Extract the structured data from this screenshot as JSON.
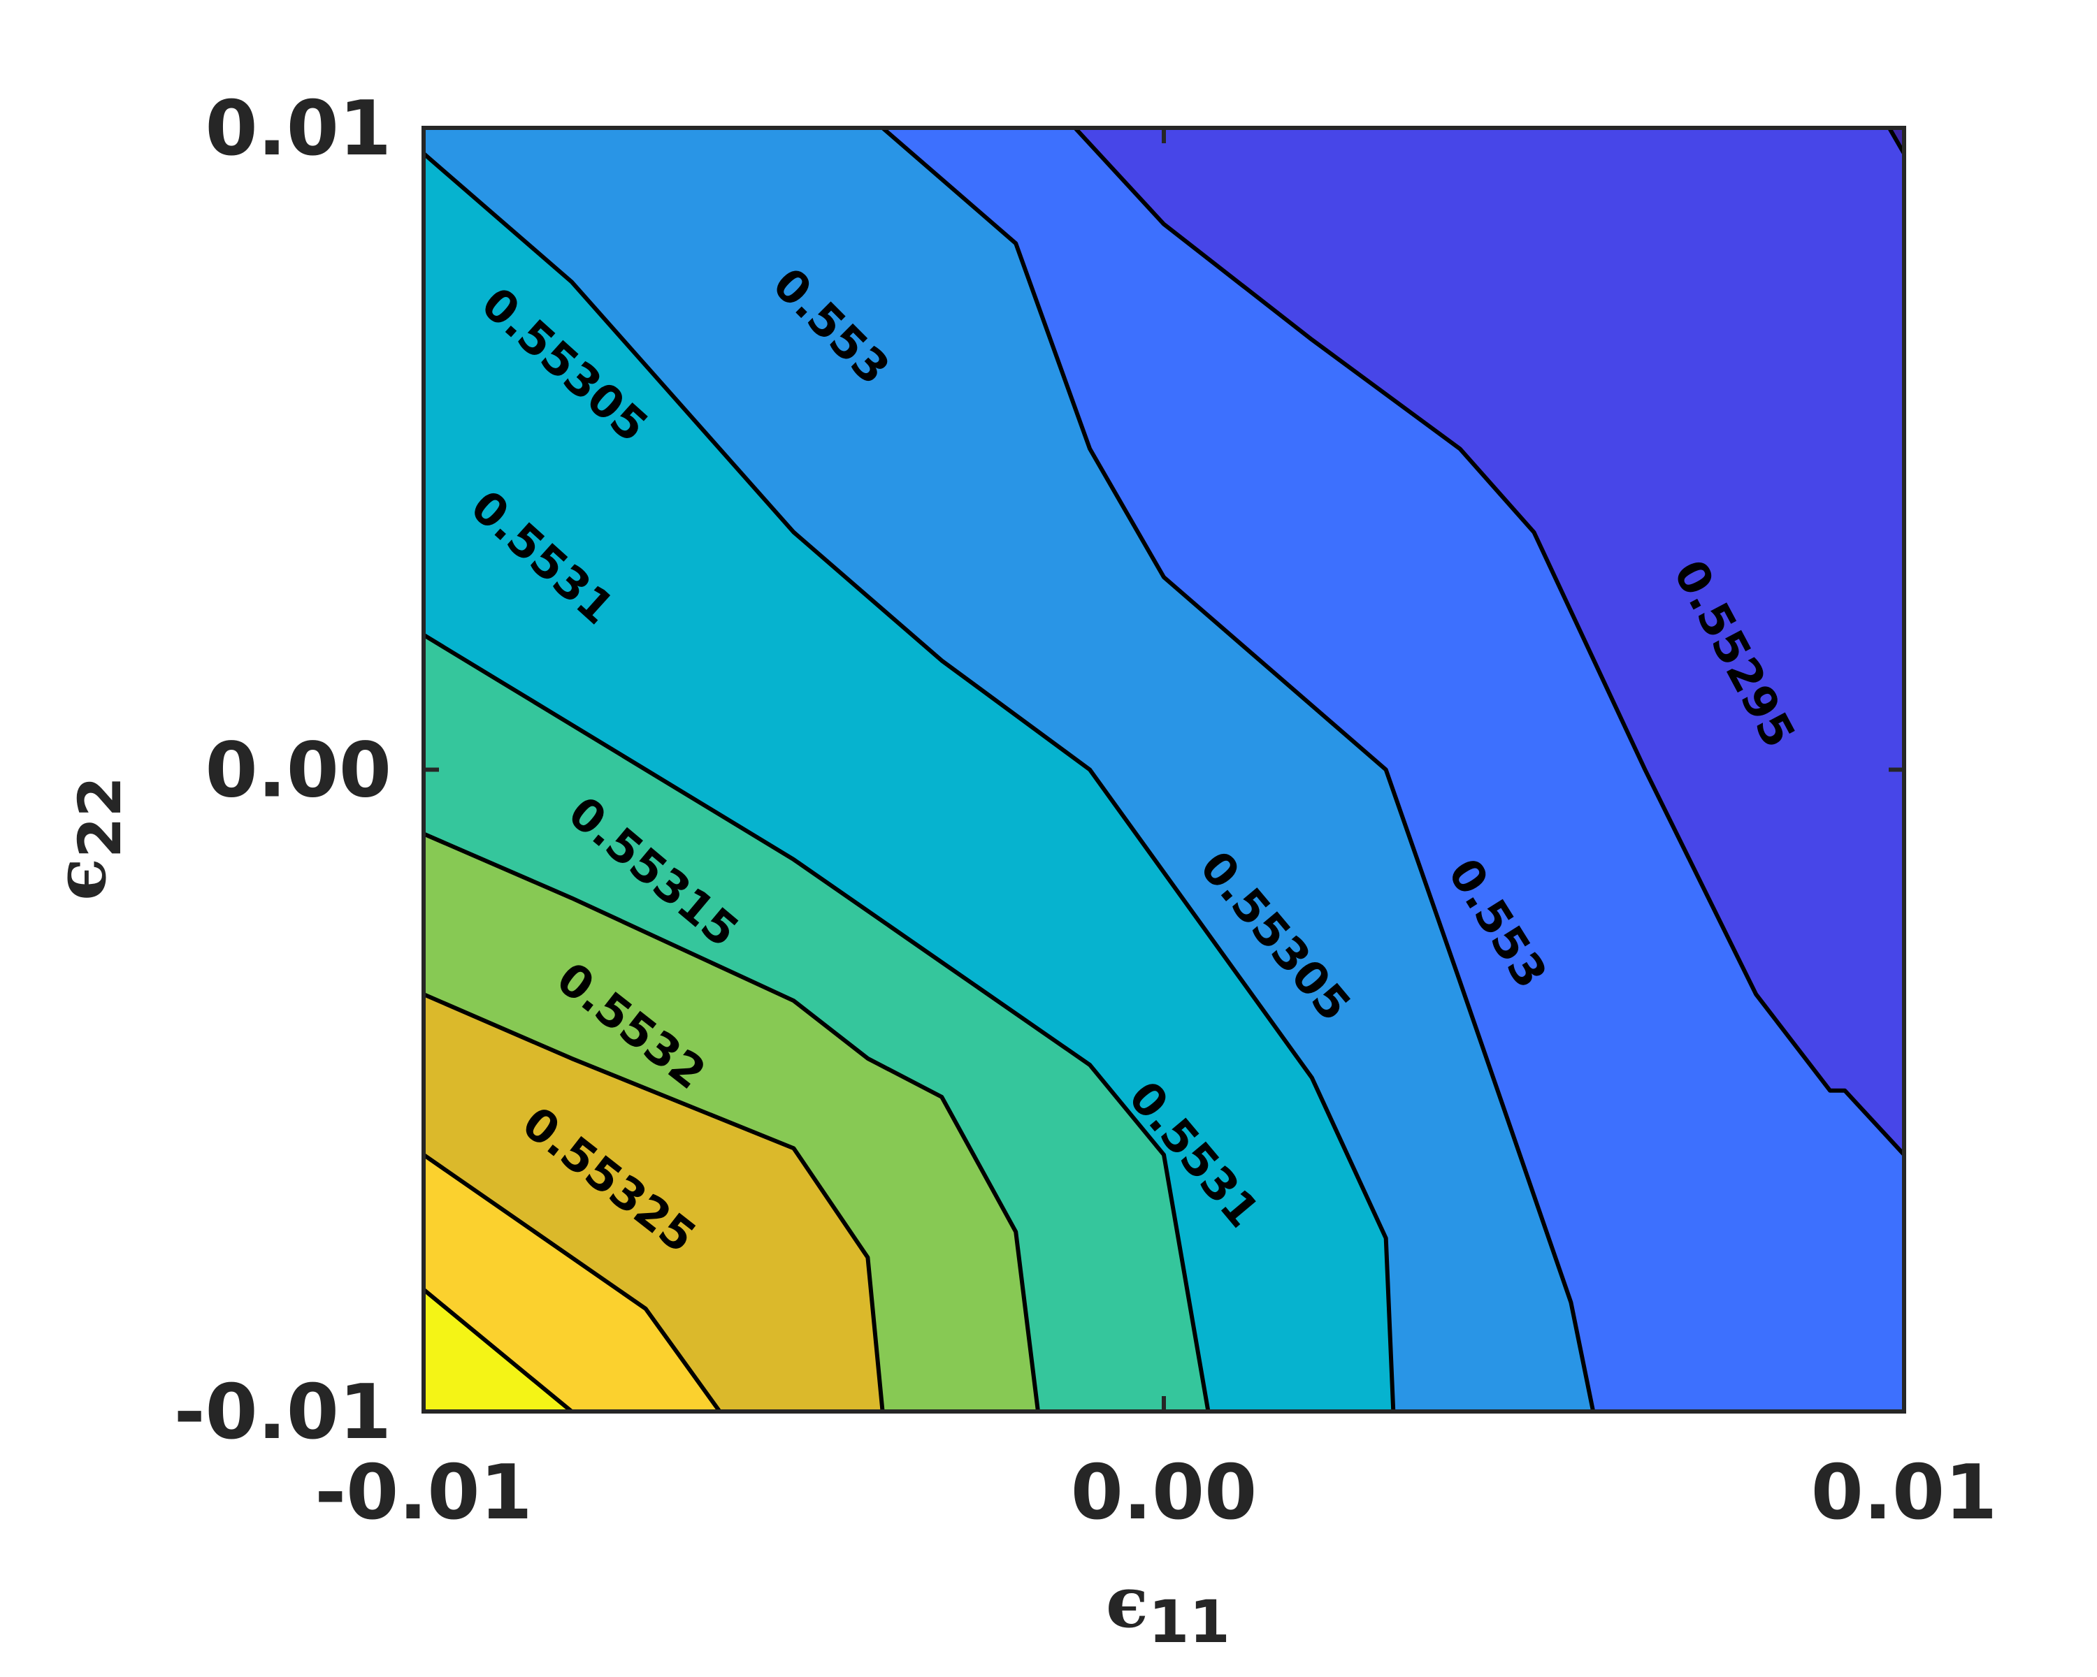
{
  "chart_data": {
    "type": "contour",
    "title": "",
    "xlabel": {
      "symbol": "ϵ",
      "subscript": "11"
    },
    "ylabel": {
      "symbol": "ϵ",
      "subscript": "22"
    },
    "xlim": [
      -0.01,
      0.01
    ],
    "ylim": [
      -0.01,
      0.01
    ],
    "x_ticks": [
      {
        "value": -0.01,
        "label": "-0.01"
      },
      {
        "value": 0.0,
        "label": "0.00"
      },
      {
        "value": 0.01,
        "label": "0.01"
      }
    ],
    "y_ticks": [
      {
        "value": -0.01,
        "label": "-0.01"
      },
      {
        "value": 0.0,
        "label": "0.00"
      },
      {
        "value": 0.01,
        "label": "0.01"
      }
    ],
    "grid": false,
    "colors": {
      "gt_0.55330": "#f4f416",
      "0.55325_0.55330": "#fbd12e",
      "0.55320_0.55325": "#dbb92b",
      "0.55315_0.55320": "#87c954",
      "0.55310_0.55315": "#35c69c",
      "0.55305_0.55310": "#06b3cf",
      "0.55300_0.55305": "#2995e6",
      "0.55295_0.55300": "#3d70fe",
      "0.55290_0.55295": "#4746e8",
      "lt_0.55290": "#3c27a6"
    },
    "contours": [
      {
        "level": 0.5533,
        "points": [
          [
            -0.01,
            -0.0081
          ],
          [
            -0.008,
            -0.01
          ]
        ]
      },
      {
        "level": 0.55325,
        "points": [
          [
            -0.01,
            -0.006
          ],
          [
            -0.007,
            -0.0084
          ],
          [
            -0.006,
            -0.01
          ]
        ]
      },
      {
        "level": 0.5532,
        "points": [
          [
            -0.01,
            -0.0035
          ],
          [
            -0.008,
            -0.0045
          ],
          [
            -0.005,
            -0.0059
          ],
          [
            -0.004,
            -0.0076
          ],
          [
            -0.0038,
            -0.01
          ]
        ]
      },
      {
        "level": 0.55315,
        "points": [
          [
            -0.01,
            -0.001
          ],
          [
            -0.008,
            -0.002
          ],
          [
            -0.005,
            -0.0036
          ],
          [
            -0.004,
            -0.0045
          ],
          [
            -0.003,
            -0.0051
          ],
          [
            -0.002,
            -0.0072
          ],
          [
            -0.0017,
            -0.01
          ]
        ]
      },
      {
        "level": 0.5531,
        "points": [
          [
            -0.01,
            0.0021
          ],
          [
            -0.009,
            0.0014
          ],
          [
            -0.007,
            0.0
          ],
          [
            -0.005,
            -0.0014
          ],
          [
            -0.003,
            -0.003
          ],
          [
            -0.001,
            -0.0046
          ],
          [
            0.0,
            -0.006
          ],
          [
            0.0006,
            -0.01
          ]
        ]
      },
      {
        "level": 0.55305,
        "points": [
          [
            -0.01,
            0.0096
          ],
          [
            -0.008,
            0.0076
          ],
          [
            -0.005,
            0.0037
          ],
          [
            -0.003,
            0.0017
          ],
          [
            -0.001,
            0.0
          ],
          [
            0.002,
            -0.0048
          ],
          [
            0.003,
            -0.0073
          ],
          [
            0.0031,
            -0.01
          ]
        ]
      },
      {
        "level": 0.553,
        "points": [
          [
            -0.0038,
            0.01
          ],
          [
            -0.002,
            0.0082
          ],
          [
            -0.001,
            0.005
          ],
          [
            0.0,
            0.003
          ],
          [
            0.003,
            0.0
          ],
          [
            0.004,
            -0.0033
          ],
          [
            0.0055,
            -0.0083
          ],
          [
            0.0058,
            -0.01
          ]
        ]
      },
      {
        "level": 0.55295,
        "points": [
          [
            -0.0012,
            0.01
          ],
          [
            0.0,
            0.0085
          ],
          [
            0.002,
            0.0067
          ],
          [
            0.004,
            0.005
          ],
          [
            0.005,
            0.0037
          ],
          [
            0.0065,
            0.0
          ],
          [
            0.008,
            -0.0035
          ],
          [
            0.009,
            -0.005
          ],
          [
            0.0092,
            -0.005
          ],
          [
            0.01,
            -0.006
          ]
        ]
      },
      {
        "level": 0.5529,
        "points": [
          [
            0.0098,
            0.01
          ],
          [
            0.01,
            0.0096
          ]
        ]
      }
    ],
    "contour_labels": [
      {
        "text": "0.553",
        "x": -0.0045,
        "y": 0.0069,
        "angle": 45
      },
      {
        "text": "0.55305",
        "x": -0.0081,
        "y": 0.0063,
        "angle": 42
      },
      {
        "text": "0.5531",
        "x": -0.0084,
        "y": 0.0033,
        "angle": 42
      },
      {
        "text": "0.55315",
        "x": -0.0069,
        "y": -0.0016,
        "angle": 40
      },
      {
        "text": "0.5532",
        "x": -0.0072,
        "y": -0.004,
        "angle": 38
      },
      {
        "text": "0.55325",
        "x": -0.0075,
        "y": -0.0064,
        "angle": 38
      },
      {
        "text": "0.55305",
        "x": 0.0015,
        "y": -0.0026,
        "angle": 50
      },
      {
        "text": "0.5531",
        "x": 0.0004,
        "y": -0.006,
        "angle": 50
      },
      {
        "text": "0.553",
        "x": 0.0045,
        "y": -0.0024,
        "angle": 58
      },
      {
        "text": "0.55295",
        "x": 0.0077,
        "y": 0.0018,
        "angle": 62
      }
    ]
  }
}
